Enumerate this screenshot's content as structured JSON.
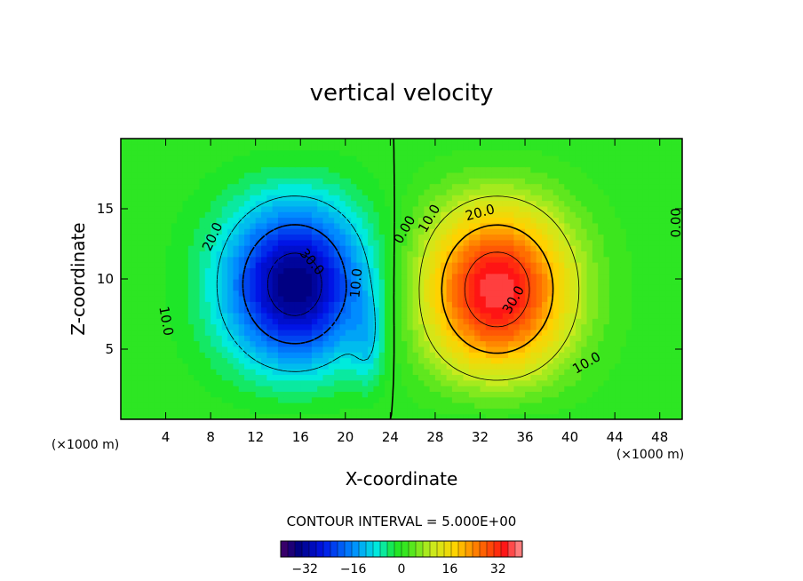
{
  "chart_data": {
    "type": "contour",
    "title": "vertical velocity",
    "xlabel": "X-coordinate",
    "ylabel": "Z-coordinate",
    "x_unit": "(×1000 m)",
    "y_unit": "(×1000 m)",
    "xlim": [
      0,
      50
    ],
    "ylim": [
      0,
      20
    ],
    "x_ticks": [
      4,
      8,
      12,
      16,
      20,
      24,
      28,
      32,
      36,
      40,
      44,
      48
    ],
    "y_ticks": [
      5,
      10,
      15
    ],
    "contour_interval_label": "CONTOUR INTERVAL = 5.000E+00",
    "contour_interval": 5,
    "field": {
      "downdraft": {
        "center_x": 15.5,
        "center_z": 9.5,
        "min": -35
      },
      "updraft": {
        "center_x": 33.5,
        "center_z": 9.0,
        "max": 37
      },
      "secondary_downdraft": {
        "center_x": 22,
        "center_z": 5,
        "min": -8
      }
    },
    "contour_labels": [
      {
        "text": "10.0",
        "x": 4.0,
        "z": 7.0,
        "rot": 80
      },
      {
        "text": "20.0",
        "x": 8.2,
        "z": 13.0,
        "rot": -65
      },
      {
        "text": "30.0",
        "x": 17.0,
        "z": 11.2,
        "rot": 50
      },
      {
        "text": "10.0",
        "x": 21.0,
        "z": 9.7,
        "rot": -85
      },
      {
        "text": "0.00",
        "x": 25.3,
        "z": 13.5,
        "rot": -60
      },
      {
        "text": "10.0",
        "x": 27.5,
        "z": 14.3,
        "rot": -60
      },
      {
        "text": "20.0",
        "x": 32.0,
        "z": 14.7,
        "rot": -15
      },
      {
        "text": "30.0",
        "x": 35.0,
        "z": 8.5,
        "rot": -60
      },
      {
        "text": "10.0",
        "x": 41.5,
        "z": 4.0,
        "rot": -30
      },
      {
        "text": "0.00",
        "x": 49.5,
        "z": 14.0,
        "rot": -90
      }
    ],
    "colorbar": {
      "min": -40,
      "max": 40,
      "ticks": [
        -32,
        -16,
        0,
        16,
        32
      ],
      "tick_labels": [
        "−32",
        "−16",
        "0",
        "16",
        "32"
      ]
    }
  }
}
